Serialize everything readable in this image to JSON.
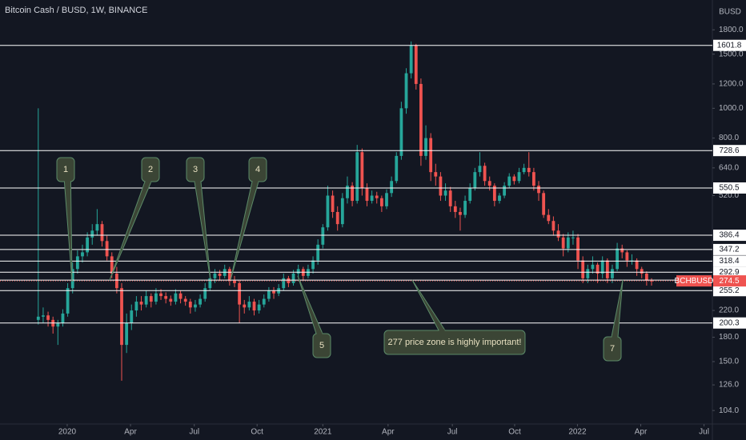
{
  "chart_data": {
    "type": "candlestick",
    "title": "Bitcoin Cash / BUSD, 1W, BINANCE",
    "currency": "BUSD",
    "up_color": "#26a69a",
    "down_color": "#ef5350",
    "log_scale": true,
    "ylim": [
      94,
      2250
    ],
    "yticks": [
      {
        "value": 1800,
        "label": "1800.0"
      },
      {
        "value": 1500,
        "label": "1500.0"
      },
      {
        "value": 1200,
        "label": "1200.0"
      },
      {
        "value": 1000,
        "label": "1000.0"
      },
      {
        "value": 800,
        "label": "800.0"
      },
      {
        "value": 640,
        "label": "640.0"
      },
      {
        "value": 520,
        "label": "520.0"
      },
      {
        "value": 220,
        "label": "220.0"
      },
      {
        "value": 180,
        "label": "180.0"
      },
      {
        "value": 150,
        "label": "150.0"
      },
      {
        "value": 126,
        "label": "126.0"
      },
      {
        "value": 104,
        "label": "104.0"
      }
    ],
    "xlim": [
      -7.8,
      137.4
    ],
    "xticks": [
      {
        "value": 5.9,
        "label": "2020"
      },
      {
        "value": 18.8,
        "label": "Apr"
      },
      {
        "value": 31.8,
        "label": "Jul"
      },
      {
        "value": 44.6,
        "label": "Oct"
      },
      {
        "value": 58,
        "label": "2021"
      },
      {
        "value": 71.3,
        "label": "Apr"
      },
      {
        "value": 84.4,
        "label": "Jul"
      },
      {
        "value": 97.1,
        "label": "Oct"
      },
      {
        "value": 109.9,
        "label": "2022"
      },
      {
        "value": 122.8,
        "label": "Apr"
      },
      {
        "value": 135.7,
        "label": "Jul"
      }
    ],
    "levels": [
      1601.8,
      728.6,
      550.5,
      386.4,
      347.2,
      318.4,
      292.9,
      276.2,
      255.2,
      200.3
    ],
    "level_color": "#ffffff",
    "last_price": {
      "value": 274.5,
      "symbol": "BCHBUSD",
      "color": "#ef5350"
    },
    "annotations": [
      {
        "text": "1"
      },
      {
        "text": "2"
      },
      {
        "text": "3"
      },
      {
        "text": "4"
      },
      {
        "text": "5"
      },
      {
        "text": "7"
      },
      {
        "text": "277 price zone is highly important!"
      }
    ],
    "ohlc": [
      [
        205,
        1000,
        198,
        210
      ],
      [
        210,
        225,
        200,
        212
      ],
      [
        212,
        218,
        195,
        205
      ],
      [
        205,
        210,
        185,
        195
      ],
      [
        195,
        205,
        170,
        200
      ],
      [
        200,
        222,
        195,
        215
      ],
      [
        215,
        270,
        210,
        260
      ],
      [
        260,
        315,
        250,
        300
      ],
      [
        300,
        345,
        290,
        330
      ],
      [
        330,
        360,
        315,
        340
      ],
      [
        340,
        395,
        330,
        380
      ],
      [
        380,
        420,
        360,
        400
      ],
      [
        400,
        470,
        385,
        420
      ],
      [
        420,
        430,
        355,
        370
      ],
      [
        370,
        385,
        320,
        330
      ],
      [
        330,
        340,
        280,
        290
      ],
      [
        290,
        305,
        250,
        260
      ],
      [
        260,
        270,
        130,
        170
      ],
      [
        170,
        215,
        160,
        200
      ],
      [
        200,
        230,
        190,
        220
      ],
      [
        220,
        245,
        210,
        235
      ],
      [
        235,
        245,
        220,
        230
      ],
      [
        230,
        255,
        225,
        245
      ],
      [
        245,
        250,
        225,
        235
      ],
      [
        235,
        260,
        230,
        250
      ],
      [
        250,
        258,
        238,
        245
      ],
      [
        245,
        252,
        232,
        240
      ],
      [
        240,
        246,
        228,
        235
      ],
      [
        235,
        258,
        230,
        250
      ],
      [
        250,
        255,
        232,
        240
      ],
      [
        240,
        245,
        228,
        235
      ],
      [
        235,
        240,
        215,
        225
      ],
      [
        225,
        238,
        218,
        230
      ],
      [
        230,
        248,
        225,
        240
      ],
      [
        240,
        270,
        235,
        260
      ],
      [
        260,
        290,
        255,
        280
      ],
      [
        280,
        300,
        270,
        290
      ],
      [
        290,
        298,
        275,
        285
      ],
      [
        285,
        310,
        280,
        300
      ],
      [
        300,
        305,
        265,
        275
      ],
      [
        275,
        285,
        262,
        270
      ],
      [
        270,
        275,
        200,
        230
      ],
      [
        230,
        238,
        215,
        225
      ],
      [
        225,
        245,
        220,
        235
      ],
      [
        235,
        240,
        212,
        220
      ],
      [
        220,
        238,
        215,
        230
      ],
      [
        230,
        248,
        225,
        240
      ],
      [
        240,
        262,
        235,
        255
      ],
      [
        255,
        262,
        240,
        250
      ],
      [
        250,
        268,
        245,
        260
      ],
      [
        260,
        290,
        255,
        280
      ],
      [
        280,
        285,
        262,
        270
      ],
      [
        270,
        298,
        265,
        290
      ],
      [
        290,
        310,
        282,
        300
      ],
      [
        300,
        305,
        275,
        285
      ],
      [
        285,
        310,
        280,
        300
      ],
      [
        300,
        330,
        290,
        320
      ],
      [
        320,
        375,
        310,
        360
      ],
      [
        360,
        420,
        350,
        410
      ],
      [
        410,
        560,
        400,
        520
      ],
      [
        520,
        540,
        440,
        460
      ],
      [
        460,
        480,
        400,
        420
      ],
      [
        420,
        530,
        410,
        510
      ],
      [
        510,
        600,
        490,
        560
      ],
      [
        560,
        575,
        480,
        500
      ],
      [
        500,
        760,
        490,
        720
      ],
      [
        720,
        740,
        520,
        550
      ],
      [
        550,
        570,
        480,
        500
      ],
      [
        500,
        540,
        490,
        520
      ],
      [
        520,
        535,
        490,
        510
      ],
      [
        510,
        520,
        460,
        480
      ],
      [
        480,
        545,
        470,
        530
      ],
      [
        530,
        600,
        515,
        580
      ],
      [
        580,
        720,
        570,
        700
      ],
      [
        700,
        1050,
        680,
        1000
      ],
      [
        1000,
        1350,
        960,
        1300
      ],
      [
        1300,
        1650,
        1250,
        1600
      ],
      [
        1600,
        1620,
        1150,
        1200
      ],
      [
        1200,
        1250,
        650,
        700
      ],
      [
        700,
        880,
        680,
        800
      ],
      [
        800,
        830,
        580,
        620
      ],
      [
        620,
        660,
        560,
        600
      ],
      [
        600,
        620,
        500,
        520
      ],
      [
        520,
        570,
        500,
        540
      ],
      [
        540,
        555,
        460,
        480
      ],
      [
        480,
        500,
        440,
        460
      ],
      [
        460,
        475,
        400,
        450
      ],
      [
        450,
        520,
        440,
        500
      ],
      [
        500,
        570,
        490,
        550
      ],
      [
        550,
        640,
        540,
        620
      ],
      [
        620,
        720,
        600,
        650
      ],
      [
        650,
        665,
        560,
        580
      ],
      [
        580,
        600,
        540,
        560
      ],
      [
        560,
        570,
        480,
        500
      ],
      [
        500,
        530,
        490,
        520
      ],
      [
        520,
        575,
        510,
        560
      ],
      [
        560,
        615,
        550,
        600
      ],
      [
        600,
        610,
        565,
        580
      ],
      [
        580,
        640,
        570,
        620
      ],
      [
        620,
        660,
        610,
        640
      ],
      [
        640,
        720,
        600,
        620
      ],
      [
        620,
        640,
        540,
        560
      ],
      [
        560,
        580,
        500,
        530
      ],
      [
        530,
        540,
        440,
        450
      ],
      [
        450,
        470,
        420,
        430
      ],
      [
        430,
        445,
        385,
        400
      ],
      [
        400,
        420,
        370,
        380
      ],
      [
        380,
        390,
        330,
        350
      ],
      [
        350,
        395,
        340,
        380
      ],
      [
        380,
        400,
        360,
        380
      ],
      [
        380,
        390,
        300,
        320
      ],
      [
        320,
        330,
        270,
        280
      ],
      [
        280,
        310,
        270,
        300
      ],
      [
        300,
        330,
        290,
        310
      ],
      [
        310,
        315,
        270,
        290
      ],
      [
        290,
        330,
        280,
        320
      ],
      [
        320,
        325,
        270,
        280
      ],
      [
        280,
        310,
        270,
        300
      ],
      [
        300,
        365,
        295,
        350
      ],
      [
        350,
        360,
        325,
        340
      ],
      [
        340,
        345,
        305,
        320
      ],
      [
        320,
        335,
        310,
        320
      ],
      [
        320,
        325,
        285,
        300
      ],
      [
        300,
        305,
        280,
        290
      ],
      [
        290,
        295,
        265,
        275
      ],
      [
        275,
        280,
        265,
        274.5
      ]
    ]
  }
}
